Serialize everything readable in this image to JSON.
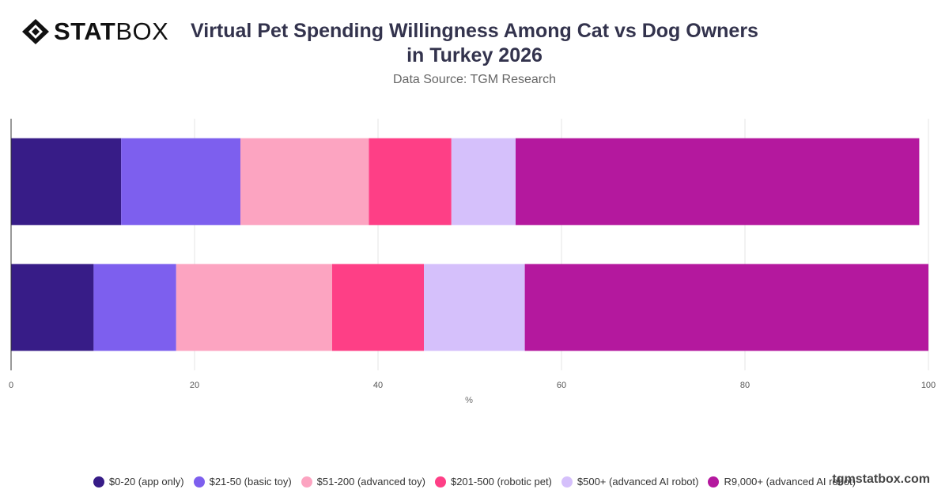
{
  "brand": {
    "logo_bold": "STAT",
    "logo_light": "BOX",
    "watermark": "tgmstatbox.com",
    "logo_icon": "diamond-logo-icon"
  },
  "chart_data": {
    "type": "bar",
    "orientation": "horizontal",
    "stacked": true,
    "title": "Virtual Pet Spending Willingness Among Cat vs Dog Owners in Turkey 2026",
    "subtitle": "Data Source: TGM Research",
    "xlabel": "%",
    "ylabel": "",
    "xlim": [
      0,
      100
    ],
    "xticks": [
      0,
      20,
      40,
      60,
      80,
      100
    ],
    "grid": true,
    "legend_position": "bottom",
    "categories": [
      "",
      ""
    ],
    "series": [
      {
        "name": "$0-20 (app only)",
        "color": "#371c87",
        "values": [
          12,
          9
        ]
      },
      {
        "name": "$21-50 (basic toy)",
        "color": "#7d5fee",
        "values": [
          13,
          9
        ]
      },
      {
        "name": "$51-200 (advanced toy)",
        "color": "#fca4c1",
        "values": [
          14,
          17
        ]
      },
      {
        "name": "$201-500 (robotic pet)",
        "color": "#fe3f86",
        "values": [
          9,
          10
        ]
      },
      {
        "name": "$500+ (advanced AI robot)",
        "color": "#d5c0fb",
        "values": [
          7,
          11
        ]
      },
      {
        "name": "R9,000+ (advanced AI robot)",
        "color": "#b4189e",
        "values": [
          44,
          44
        ]
      }
    ]
  }
}
